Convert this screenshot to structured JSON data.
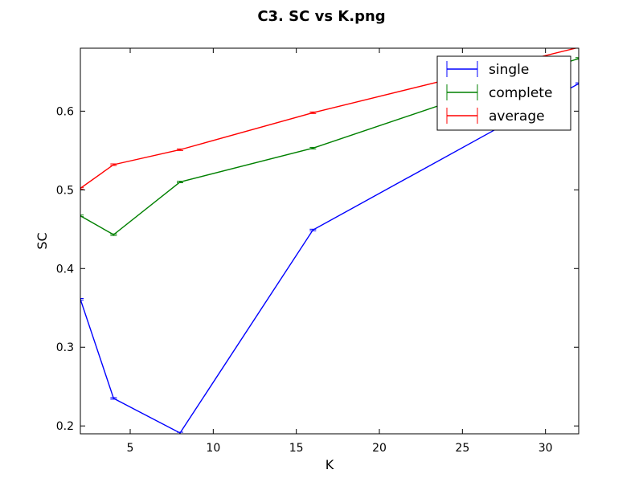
{
  "chart_data": {
    "type": "line",
    "title": "C3. SC vs K.png",
    "xlabel": "K",
    "ylabel": "SC",
    "xlim": [
      2,
      32
    ],
    "ylim": [
      0.19,
      0.68
    ],
    "xticks": [
      5,
      10,
      15,
      20,
      25,
      30
    ],
    "xtick_labels": [
      "5",
      "10",
      "15",
      "20",
      "25",
      "30"
    ],
    "yticks": [
      0.2,
      0.3,
      0.4,
      0.5,
      0.6
    ],
    "ytick_labels": [
      "0.2",
      "0.3",
      "0.4",
      "0.5",
      "0.6"
    ],
    "grid": false,
    "legend_position": "top-right",
    "x": [
      2,
      4,
      8,
      16,
      32
    ],
    "series": [
      {
        "name": "single",
        "color": "#0000ff",
        "values": [
          0.361,
          0.235,
          0.191,
          0.449,
          0.635
        ],
        "error": [
          0.001,
          0.001,
          0.001,
          0.001,
          0.001
        ]
      },
      {
        "name": "complete",
        "color": "#008000",
        "values": [
          0.467,
          0.443,
          0.51,
          0.553,
          0.667
        ],
        "error": [
          0.001,
          0.001,
          0.001,
          0.001,
          0.001
        ]
      },
      {
        "name": "average",
        "color": "#ff0000",
        "values": [
          0.502,
          0.532,
          0.551,
          0.598,
          0.681
        ],
        "error": [
          0.001,
          0.001,
          0.001,
          0.001,
          0.001
        ]
      }
    ]
  }
}
